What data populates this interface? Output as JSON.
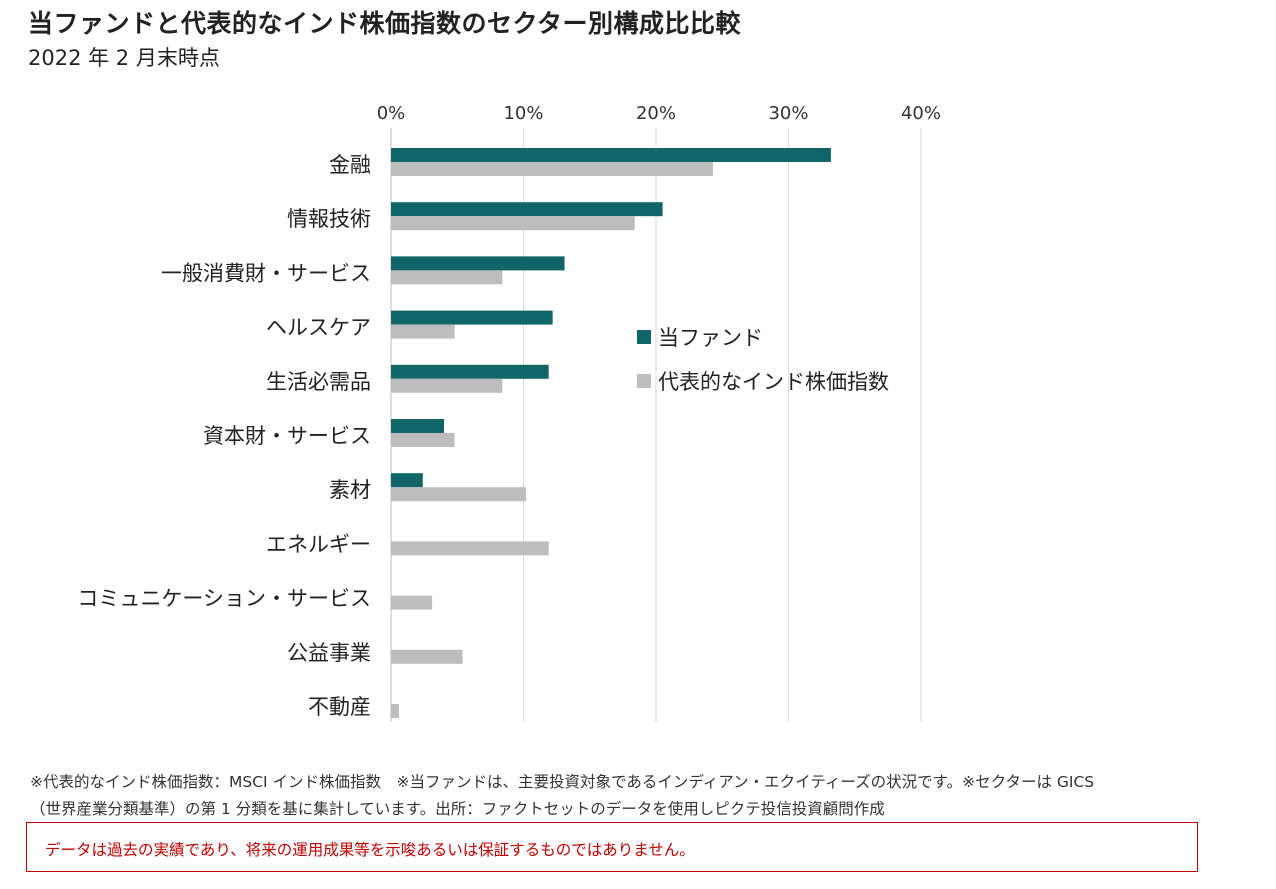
{
  "title": "当ファンドと代表的なインド株価指数のセクター別構成比比較",
  "subtitle": "2022 年 2 月末時点",
  "colors": {
    "fund": "#0f6567",
    "index": "#bdbdbd",
    "grid": "#d9d9d9",
    "disclaimer": "#c00000"
  },
  "chart_data": {
    "type": "bar",
    "orientation": "horizontal",
    "categories": [
      "金融",
      "情報技術",
      "一般消費財・サービス",
      "ヘルスケア",
      "生活必需品",
      "資本財・サービス",
      "素材",
      "エネルギー",
      "コミュニケーション・サービス",
      "公益事業",
      "不動産"
    ],
    "series": [
      {
        "name": "当ファンド",
        "values": [
          33.2,
          20.5,
          13.1,
          12.2,
          11.9,
          4.0,
          2.4,
          0,
          0,
          0,
          0
        ]
      },
      {
        "name": "代表的なインド株価指数",
        "values": [
          24.3,
          18.4,
          8.4,
          4.8,
          8.4,
          4.8,
          10.2,
          11.9,
          3.1,
          5.4,
          0.6
        ]
      }
    ],
    "xlim": [
      0,
      40
    ],
    "ticks": [
      0,
      10,
      20,
      30,
      40
    ],
    "tick_labels": [
      "0%",
      "10%",
      "20%",
      "30%",
      "40%"
    ],
    "axis_position": "top",
    "grid": true,
    "legend_position": "center-right"
  },
  "footnotes": {
    "line1": "※代表的なインド株価指数：MSCI インド株価指数　※当ファンドは、主要投資対象であるインディアン・エクイティーズの状況です。※セクターは GICS",
    "line2": "（世界産業分類基準）の第 1 分類を基に集計しています。出所：ファクトセットのデータを使用しピクテ投信投資顧問作成"
  },
  "disclaimer": "データは過去の実績であり、将来の運用成果等を示唆あるいは保証するものではありません。"
}
